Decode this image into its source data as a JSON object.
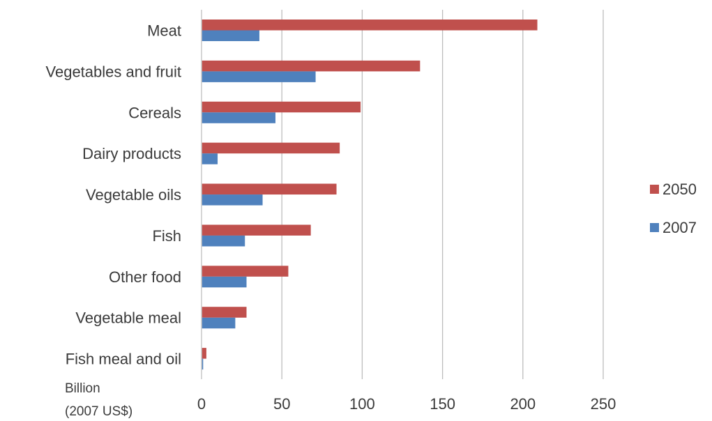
{
  "chart_data": {
    "type": "bar",
    "orientation": "horizontal",
    "categories": [
      "Meat",
      "Vegetables and fruit",
      "Cereals",
      "Dairy products",
      "Vegetable oils",
      "Fish",
      "Other food",
      "Vegetable meal",
      "Fish meal and oil"
    ],
    "series": [
      {
        "name": "2050",
        "color": "#c0504d",
        "values": [
          209,
          136,
          99,
          86,
          84,
          68,
          54,
          28,
          3
        ]
      },
      {
        "name": "2007",
        "color": "#4f81bd",
        "values": [
          36,
          71,
          46,
          10,
          38,
          27,
          28,
          21,
          1
        ]
      }
    ],
    "xlim": [
      0,
      250
    ],
    "xticks": [
      0,
      50,
      100,
      150,
      200,
      250
    ],
    "xlabel_lines": [
      "Billion",
      "(2007 US$)"
    ],
    "grid": "vertical",
    "legend": "right"
  }
}
